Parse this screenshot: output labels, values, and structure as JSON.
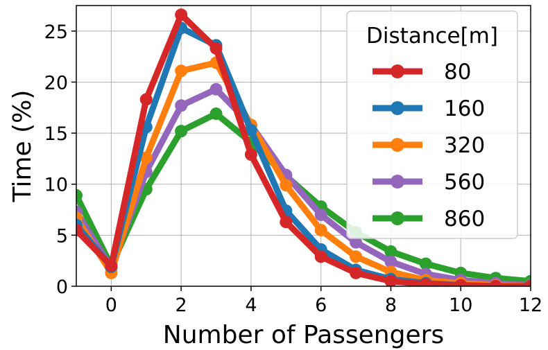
{
  "chart_data": {
    "type": "line",
    "title": "",
    "xlabel": "Number of Passengers",
    "ylabel": "Time (%)",
    "xlim": [
      -1,
      12
    ],
    "ylim": [
      0,
      27.5
    ],
    "xticks": [
      0,
      2,
      4,
      6,
      8,
      10,
      12
    ],
    "yticks": [
      0,
      5,
      10,
      15,
      20,
      25
    ],
    "grid": true,
    "legend": {
      "title": "Distance[m]",
      "position": "top-right"
    },
    "x": [
      -1,
      0,
      1,
      2,
      3,
      4,
      5,
      6,
      7,
      8,
      9,
      10,
      11,
      12
    ],
    "series": [
      {
        "name": "80",
        "color": "#d62728",
        "values": [
          5.5,
          2.0,
          18.3,
          26.6,
          23.3,
          12.9,
          6.3,
          2.9,
          1.3,
          0.5,
          0.2,
          0.1,
          0.0,
          0.0
        ]
      },
      {
        "name": "160",
        "color": "#1f77b4",
        "values": [
          6.0,
          1.9,
          15.6,
          25.3,
          23.6,
          15.3,
          7.4,
          3.6,
          1.6,
          0.7,
          0.3,
          0.1,
          0.0,
          0.0
        ]
      },
      {
        "name": "320",
        "color": "#ff7f0e",
        "values": [
          6.7,
          1.3,
          12.6,
          21.1,
          21.9,
          15.8,
          9.9,
          5.5,
          2.9,
          1.4,
          0.6,
          0.3,
          0.1,
          0.0
        ]
      },
      {
        "name": "560",
        "color": "#9467bd",
        "values": [
          7.3,
          1.8,
          11.2,
          17.7,
          19.3,
          15.8,
          10.9,
          7.0,
          4.3,
          2.4,
          1.2,
          0.6,
          0.3,
          0.1
        ]
      },
      {
        "name": "860",
        "color": "#2ca02c",
        "values": [
          8.9,
          2.0,
          9.5,
          15.2,
          16.9,
          14.1,
          10.8,
          7.8,
          5.3,
          3.4,
          2.2,
          1.3,
          0.8,
          0.5
        ]
      }
    ]
  }
}
